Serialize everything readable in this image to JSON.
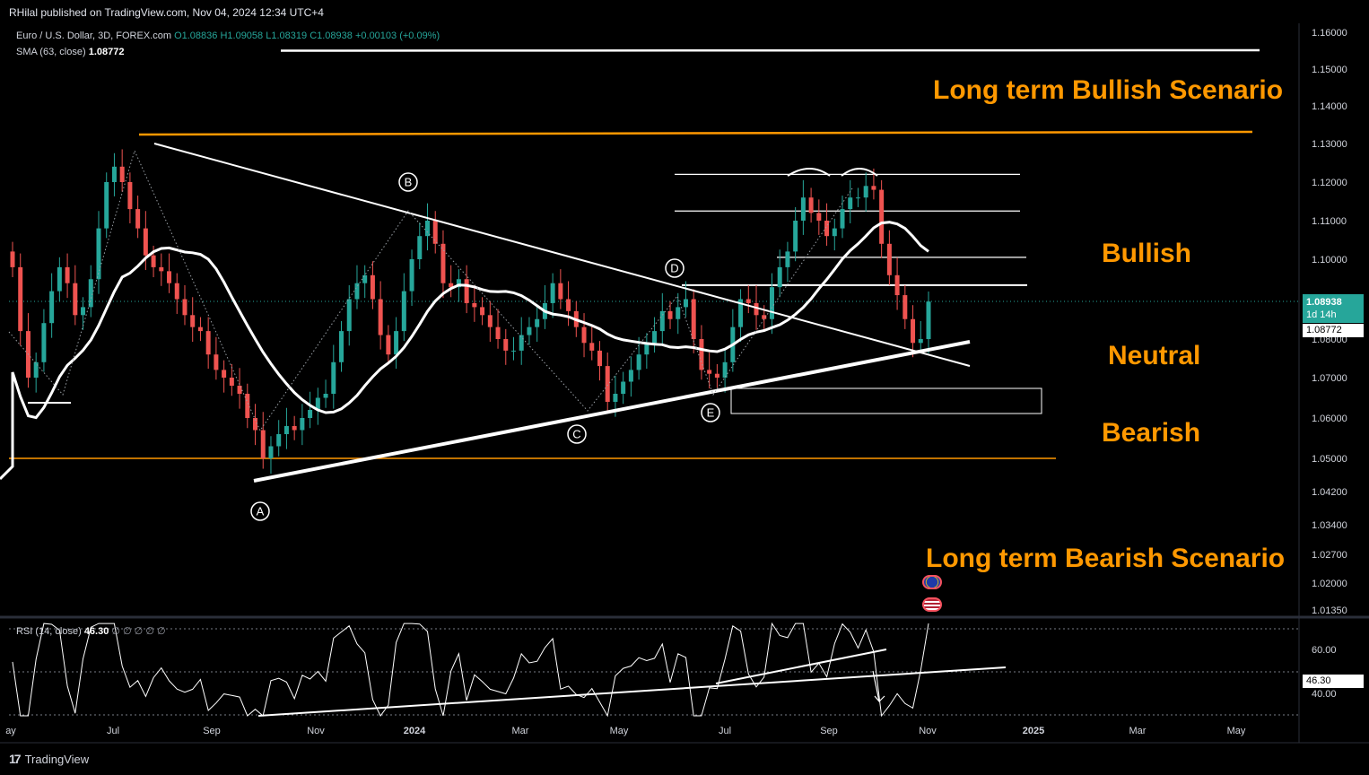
{
  "header": {
    "published": "RHilal published on TradingView.com, Nov 04, 2024 12:34 UTC+4"
  },
  "legend": {
    "symbol": "Euro / U.S. Dollar, 3D, FOREX.com",
    "open": "O1.08836",
    "high": "H1.09058",
    "low": "L1.08319",
    "close": "C1.08938",
    "change": "+0.00103 (+0.09%)",
    "sma_label": "SMA (63, close)",
    "sma_value": "1.08772"
  },
  "rsi_legend": {
    "label": "RSI (14, close)",
    "value": "46.30",
    "extras": "∅ ∅ ∅ ∅ ∅"
  },
  "scenarios": {
    "long_bull": "Long term Bullish Scenario",
    "bullish": "Bullish",
    "neutral": "Neutral",
    "bearish": "Bearish",
    "long_bear": "Long term Bearish Scenario"
  },
  "price_tags": {
    "last": "1.08938",
    "countdown": "1d 14h",
    "sma": "1.08772",
    "rsi": "46.30"
  },
  "footer": {
    "brand": "TradingView",
    "logo": "17"
  },
  "chart_data": [
    {
      "type": "candlestick",
      "title": "Euro / U.S. Dollar, 3D, FOREX.com",
      "y_axis_ticks": [
        "1.16000",
        "1.15000",
        "1.14000",
        "1.13000",
        "1.12000",
        "1.11000",
        "1.10000",
        "1.08000",
        "1.07000",
        "1.06000",
        "1.05000",
        "1.04200",
        "1.03400",
        "1.02700",
        "1.02000",
        "1.01350"
      ],
      "x_axis_ticks": [
        "ay",
        "Jul",
        "Sep",
        "Nov",
        "2024",
        "Mar",
        "May",
        "Jul",
        "Sep",
        "Nov",
        "2025",
        "Mar",
        "May"
      ],
      "wave_labels": [
        "A",
        "B",
        "C",
        "D",
        "E"
      ],
      "key_levels": {
        "long_term_top_line": 1.155,
        "long_term_bull_line": 1.133,
        "fib_levels": [
          1.122,
          1.1125,
          1.1005,
          1.0935
        ],
        "bearish_line": 1.05
      },
      "sma_period": 63,
      "last_close": 1.08938,
      "sma_last": 1.08772,
      "close_path": [
        {
          "t": "2023-05",
          "c": 1.098
        },
        {
          "t": "2023-05",
          "c": 1.082
        },
        {
          "t": "2023-06",
          "c": 1.07
        },
        {
          "t": "2023-06",
          "c": 1.074
        },
        {
          "t": "2023-06",
          "c": 1.084
        },
        {
          "t": "2023-06",
          "c": 1.092
        },
        {
          "t": "2023-06",
          "c": 1.098
        },
        {
          "t": "2023-06",
          "c": 1.094
        },
        {
          "t": "2023-06",
          "c": 1.086
        },
        {
          "t": "2023-07",
          "c": 1.088
        },
        {
          "t": "2023-07",
          "c": 1.095
        },
        {
          "t": "2023-07",
          "c": 1.108
        },
        {
          "t": "2023-07",
          "c": 1.12
        },
        {
          "t": "2023-07",
          "c": 1.124
        },
        {
          "t": "2023-07",
          "c": 1.12
        },
        {
          "t": "2023-07",
          "c": 1.113
        },
        {
          "t": "2023-07",
          "c": 1.108
        },
        {
          "t": "2023-08",
          "c": 1.101
        },
        {
          "t": "2023-08",
          "c": 1.098
        },
        {
          "t": "2023-08",
          "c": 1.097
        },
        {
          "t": "2023-08",
          "c": 1.094
        },
        {
          "t": "2023-08",
          "c": 1.09
        },
        {
          "t": "2023-08",
          "c": 1.086
        },
        {
          "t": "2023-08",
          "c": 1.083
        },
        {
          "t": "2023-08",
          "c": 1.082
        },
        {
          "t": "2023-09",
          "c": 1.076
        },
        {
          "t": "2023-09",
          "c": 1.072
        },
        {
          "t": "2023-09",
          "c": 1.07
        },
        {
          "t": "2023-09",
          "c": 1.068
        },
        {
          "t": "2023-09",
          "c": 1.066
        },
        {
          "t": "2023-09",
          "c": 1.06
        },
        {
          "t": "2023-09",
          "c": 1.057
        },
        {
          "t": "2023-10",
          "c": 1.05
        },
        {
          "t": "2023-10",
          "c": 1.053
        },
        {
          "t": "2023-10",
          "c": 1.056
        },
        {
          "t": "2023-10",
          "c": 1.058
        },
        {
          "t": "2023-10",
          "c": 1.057
        },
        {
          "t": "2023-10",
          "c": 1.06
        },
        {
          "t": "2023-10",
          "c": 1.062
        },
        {
          "t": "2023-10",
          "c": 1.065
        },
        {
          "t": "2023-11",
          "c": 1.066
        },
        {
          "t": "2023-11",
          "c": 1.074
        },
        {
          "t": "2023-11",
          "c": 1.082
        },
        {
          "t": "2023-11",
          "c": 1.09
        },
        {
          "t": "2023-11",
          "c": 1.094
        },
        {
          "t": "2023-11",
          "c": 1.096
        },
        {
          "t": "2023-11",
          "c": 1.09
        },
        {
          "t": "2023-12",
          "c": 1.081
        },
        {
          "t": "2023-12",
          "c": 1.076
        },
        {
          "t": "2023-12",
          "c": 1.082
        },
        {
          "t": "2023-12",
          "c": 1.092
        },
        {
          "t": "2023-12",
          "c": 1.1
        },
        {
          "t": "2023-12",
          "c": 1.106
        },
        {
          "t": "2023-12",
          "c": 1.11
        },
        {
          "t": "2023-12",
          "c": 1.104
        },
        {
          "t": "2024-01",
          "c": 1.094
        },
        {
          "t": "2024-01",
          "c": 1.093
        },
        {
          "t": "2024-01",
          "c": 1.095
        },
        {
          "t": "2024-01",
          "c": 1.089
        },
        {
          "t": "2024-01",
          "c": 1.088
        },
        {
          "t": "2024-01",
          "c": 1.086
        },
        {
          "t": "2024-01",
          "c": 1.083
        },
        {
          "t": "2024-02",
          "c": 1.08
        },
        {
          "t": "2024-02",
          "c": 1.077
        },
        {
          "t": "2024-02",
          "c": 1.077
        },
        {
          "t": "2024-02",
          "c": 1.081
        },
        {
          "t": "2024-02",
          "c": 1.083
        },
        {
          "t": "2024-02",
          "c": 1.085
        },
        {
          "t": "2024-03",
          "c": 1.089
        },
        {
          "t": "2024-03",
          "c": 1.094
        },
        {
          "t": "2024-03",
          "c": 1.09
        },
        {
          "t": "2024-03",
          "c": 1.087
        },
        {
          "t": "2024-03",
          "c": 1.083
        },
        {
          "t": "2024-03",
          "c": 1.079
        },
        {
          "t": "2024-04",
          "c": 1.077
        },
        {
          "t": "2024-04",
          "c": 1.073
        },
        {
          "t": "2024-04",
          "c": 1.064
        },
        {
          "t": "2024-04",
          "c": 1.066
        },
        {
          "t": "2024-04",
          "c": 1.069
        },
        {
          "t": "2024-04",
          "c": 1.072
        },
        {
          "t": "2024-05",
          "c": 1.076
        },
        {
          "t": "2024-05",
          "c": 1.079
        },
        {
          "t": "2024-05",
          "c": 1.082
        },
        {
          "t": "2024-05",
          "c": 1.087
        },
        {
          "t": "2024-05",
          "c": 1.085
        },
        {
          "t": "2024-05",
          "c": 1.088
        },
        {
          "t": "2024-06",
          "c": 1.09
        },
        {
          "t": "2024-06",
          "c": 1.08
        },
        {
          "t": "2024-06",
          "c": 1.072
        },
        {
          "t": "2024-06",
          "c": 1.071
        },
        {
          "t": "2024-06",
          "c": 1.07
        },
        {
          "t": "2024-06",
          "c": 1.074
        },
        {
          "t": "2024-07",
          "c": 1.083
        },
        {
          "t": "2024-07",
          "c": 1.09
        },
        {
          "t": "2024-07",
          "c": 1.089
        },
        {
          "t": "2024-07",
          "c": 1.086
        },
        {
          "t": "2024-07",
          "c": 1.085
        },
        {
          "t": "2024-08",
          "c": 1.093
        },
        {
          "t": "2024-08",
          "c": 1.098
        },
        {
          "t": "2024-08",
          "c": 1.102
        },
        {
          "t": "2024-08",
          "c": 1.11
        },
        {
          "t": "2024-08",
          "c": 1.116
        },
        {
          "t": "2024-08",
          "c": 1.112
        },
        {
          "t": "2024-08",
          "c": 1.11
        },
        {
          "t": "2024-09",
          "c": 1.106
        },
        {
          "t": "2024-09",
          "c": 1.108
        },
        {
          "t": "2024-09",
          "c": 1.113
        },
        {
          "t": "2024-09",
          "c": 1.116
        },
        {
          "t": "2024-09",
          "c": 1.116
        },
        {
          "t": "2024-09",
          "c": 1.119
        },
        {
          "t": "2024-09",
          "c": 1.118
        },
        {
          "t": "2024-10",
          "c": 1.104
        },
        {
          "t": "2024-10",
          "c": 1.096
        },
        {
          "t": "2024-10",
          "c": 1.091
        },
        {
          "t": "2024-10",
          "c": 1.085
        },
        {
          "t": "2024-10",
          "c": 1.079
        },
        {
          "t": "2024-10",
          "c": 1.08
        },
        {
          "t": "2024-11",
          "c": 1.0894
        }
      ]
    },
    {
      "type": "line",
      "title": "RSI (14, close)",
      "y_axis_ticks": [
        "60.00",
        "40.00"
      ],
      "last_value": 46.3
    }
  ]
}
